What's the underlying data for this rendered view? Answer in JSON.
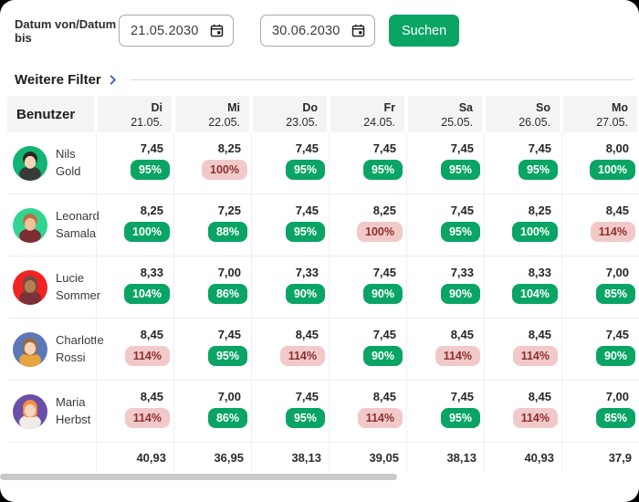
{
  "filter_bar": {
    "label": "Datum von/Datum bis",
    "date_from": "21.05.2030",
    "date_to": "30.06.2030",
    "search_button": "Suchen"
  },
  "more_filters": {
    "label": "Weitere Filter"
  },
  "table": {
    "user_header": "Benutzer",
    "day_headers": [
      {
        "day": "Di",
        "date": "21.05."
      },
      {
        "day": "Mi",
        "date": "22.05."
      },
      {
        "day": "Do",
        "date": "23.05."
      },
      {
        "day": "Fr",
        "date": "24.05."
      },
      {
        "day": "Sa",
        "date": "25.05."
      },
      {
        "day": "So",
        "date": "26.05."
      },
      {
        "day": "Mo",
        "date": "27.05."
      }
    ],
    "rows": [
      {
        "name_line1": "Nils",
        "name_line2": "Gold",
        "avatar": {
          "bg": "#10b473",
          "hair": "#2b2620",
          "skin": "#f4d3b6",
          "shirt": "#3a3a38",
          "long_hair": false
        },
        "cells": [
          {
            "value": "7,45",
            "percent": "95%",
            "status": "green"
          },
          {
            "value": "8,25",
            "percent": "100%",
            "status": "red"
          },
          {
            "value": "7,45",
            "percent": "95%",
            "status": "green"
          },
          {
            "value": "7,45",
            "percent": "95%",
            "status": "green"
          },
          {
            "value": "7,45",
            "percent": "95%",
            "status": "green"
          },
          {
            "value": "7,45",
            "percent": "95%",
            "status": "green"
          },
          {
            "value": "8,00",
            "percent": "100%",
            "status": "green"
          }
        ]
      },
      {
        "name_line1": "Leonard",
        "name_line2": "Samala",
        "avatar": {
          "bg": "#32d492",
          "hair": "#bf6e3d",
          "skin": "#eec29e",
          "shirt": "#7e2b33",
          "long_hair": false
        },
        "cells": [
          {
            "value": "8,25",
            "percent": "100%",
            "status": "green"
          },
          {
            "value": "7,25",
            "percent": "88%",
            "status": "green"
          },
          {
            "value": "7,45",
            "percent": "95%",
            "status": "green"
          },
          {
            "value": "8,25",
            "percent": "100%",
            "status": "red"
          },
          {
            "value": "7,45",
            "percent": "95%",
            "status": "green"
          },
          {
            "value": "8,25",
            "percent": "100%",
            "status": "green"
          },
          {
            "value": "8,45",
            "percent": "114%",
            "status": "red"
          }
        ]
      },
      {
        "name_line1": "Lucie",
        "name_line2": "Sommer",
        "avatar": {
          "bg": "#f22323",
          "hair": "#6f4f3d",
          "skin": "#b57e55",
          "shirt": "#7c3038",
          "long_hair": true
        },
        "cells": [
          {
            "value": "8,33",
            "percent": "104%",
            "status": "green"
          },
          {
            "value": "7,00",
            "percent": "86%",
            "status": "green"
          },
          {
            "value": "7,33",
            "percent": "90%",
            "status": "green"
          },
          {
            "value": "7,45",
            "percent": "90%",
            "status": "green"
          },
          {
            "value": "7,33",
            "percent": "90%",
            "status": "green"
          },
          {
            "value": "8,33",
            "percent": "104%",
            "status": "green"
          },
          {
            "value": "7,00",
            "percent": "85%",
            "status": "green"
          }
        ]
      },
      {
        "name_line1": "Charlotte",
        "name_line2": "Rossi",
        "avatar": {
          "bg": "#5b79b8",
          "hair": "#9a6a44",
          "skin": "#f4d4b9",
          "shirt": "#e8a43e",
          "long_hair": true
        },
        "cells": [
          {
            "value": "8,45",
            "percent": "114%",
            "status": "red"
          },
          {
            "value": "7,45",
            "percent": "95%",
            "status": "green"
          },
          {
            "value": "8,45",
            "percent": "114%",
            "status": "red"
          },
          {
            "value": "7,45",
            "percent": "90%",
            "status": "green"
          },
          {
            "value": "8,45",
            "percent": "114%",
            "status": "red"
          },
          {
            "value": "8,45",
            "percent": "114%",
            "status": "red"
          },
          {
            "value": "7,45",
            "percent": "90%",
            "status": "green"
          }
        ]
      },
      {
        "name_line1": "Maria",
        "name_line2": "Herbst",
        "avatar": {
          "bg": "#6a4fa9",
          "hair": "#f78f3f",
          "skin": "#f4d5c0",
          "shirt": "#efece7",
          "long_hair": true
        },
        "cells": [
          {
            "value": "8,45",
            "percent": "114%",
            "status": "red"
          },
          {
            "value": "7,00",
            "percent": "86%",
            "status": "green"
          },
          {
            "value": "7,45",
            "percent": "95%",
            "status": "green"
          },
          {
            "value": "8,45",
            "percent": "114%",
            "status": "red"
          },
          {
            "value": "7,45",
            "percent": "95%",
            "status": "green"
          },
          {
            "value": "8,45",
            "percent": "114%",
            "status": "red"
          },
          {
            "value": "7,00",
            "percent": "85%",
            "status": "green"
          }
        ]
      }
    ],
    "totals": [
      "40,93",
      "36,95",
      "38,13",
      "39,05",
      "38,13",
      "40,93",
      "37,9"
    ]
  },
  "colors": {
    "green": "#0aa465",
    "red_badge_bg": "#f2c9c9",
    "red_badge_text": "#8d2e2e",
    "accent_blue": "#3a5bd9",
    "scrollbar": "#c9c9c9"
  }
}
